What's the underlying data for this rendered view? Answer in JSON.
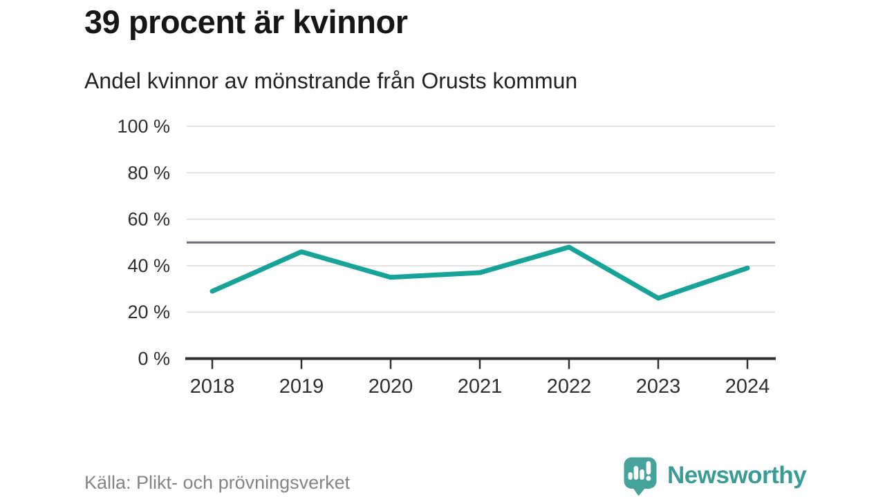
{
  "header": {
    "title": "39 procent är kvinnor",
    "subtitle": "Andel kvinnor av mönstrande från Orusts kommun"
  },
  "chart_data": {
    "type": "line",
    "title": "39 procent är kvinnor",
    "subtitle": "Andel kvinnor av mönstrande från Orusts kommun",
    "categories": [
      "2018",
      "2019",
      "2020",
      "2021",
      "2022",
      "2023",
      "2024"
    ],
    "series": [
      {
        "name": "Andel kvinnor av mönstrande",
        "values": [
          29,
          46,
          35,
          37,
          48,
          26,
          39
        ]
      }
    ],
    "unit": "%",
    "ylim": [
      0,
      100
    ],
    "yticks": [
      0,
      20,
      40,
      60,
      80,
      100
    ],
    "ytick_labels": [
      "0 %",
      "20 %",
      "40 %",
      "60 %",
      "80 %",
      "100 %"
    ],
    "reference_line": {
      "value": 50
    },
    "grid": "horizontal",
    "legend": "none",
    "colors": {
      "line": "#17a398",
      "reference": "#6b6b72",
      "grid": "#dcdcdc",
      "axis": "#2f2f2f",
      "axis_label": "#2e2e2e"
    }
  },
  "footer": {
    "source": "Källa: Plikt- och prövningsverket",
    "brand": "Newsworthy",
    "brand_color": "#3a9c95",
    "logo_icon": "newsworthy-speech-bubble-bar-chart-icon"
  }
}
